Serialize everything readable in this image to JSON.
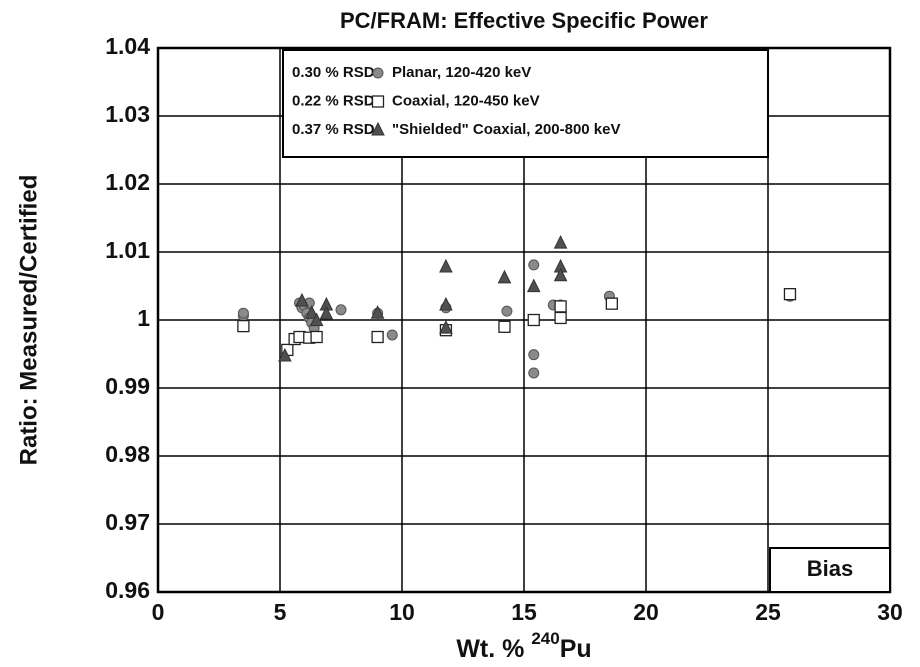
{
  "chart_data": {
    "type": "scatter",
    "title": "PC/FRAM:  Effective Specific Power",
    "xlabel": {
      "prefix": "Wt. %",
      "superscript": "240",
      "suffix": "Pu"
    },
    "ylabel": "Ratio:  Measured/Certified",
    "annotation": "Bias",
    "xlim": [
      0,
      30
    ],
    "xticks": [
      0,
      5,
      10,
      15,
      20,
      25,
      30
    ],
    "ylim": [
      0.96,
      1.04
    ],
    "yticks": [
      0.96,
      0.97,
      0.98,
      0.99,
      1,
      1.01,
      1.02,
      1.03,
      1.04
    ],
    "grid": true,
    "legend": "top",
    "series": [
      {
        "name": "Planar, 120-420 keV",
        "rsd_label": "0.30 % RSD",
        "marker": "circle",
        "color": "#8a8a8a",
        "x": [
          3.5,
          3.5,
          5.8,
          5.9,
          6.0,
          6.1,
          6.2,
          6.2,
          6.3,
          6.4,
          7.5,
          9.0,
          9.6,
          11.8,
          14.3,
          15.4,
          15.4,
          15.4,
          16.2,
          16.5,
          18.5,
          25.9
        ],
        "values": [
          1.0006,
          1.001,
          1.0025,
          1.0018,
          1.0021,
          1.001,
          1.0025,
          1.0003,
          0.9996,
          0.9988,
          1.0015,
          1.001,
          0.9978,
          1.0018,
          1.0013,
          1.0081,
          0.9949,
          0.9922,
          1.0022,
          1.0022,
          1.0035,
          1.0035
        ]
      },
      {
        "name": "Coaxial, 120-450 keV",
        "rsd_label": "0.22 % RSD",
        "marker": "square",
        "color": "#ffffff",
        "x": [
          3.5,
          5.3,
          5.6,
          5.8,
          6.2,
          6.5,
          9.0,
          11.8,
          14.2,
          15.4,
          16.5,
          16.5,
          18.6,
          25.9
        ],
        "values": [
          0.9991,
          0.9956,
          0.9972,
          0.9975,
          0.9974,
          0.9975,
          0.9975,
          0.9985,
          0.999,
          1.0,
          1.002,
          1.0003,
          1.0024,
          1.0038
        ]
      },
      {
        "name": "\"Shielded\" Coaxial, 200-800 keV",
        "rsd_label": "0.37 % RSD",
        "marker": "triangle",
        "color": "#505050",
        "x": [
          5.2,
          5.9,
          6.3,
          6.5,
          6.9,
          6.9,
          9.0,
          11.8,
          11.8,
          11.8,
          14.2,
          15.4,
          16.5,
          16.5,
          16.5
        ],
        "values": [
          0.9947,
          1.0028,
          1.001,
          0.9999,
          1.0022,
          1.0009,
          1.001,
          1.0078,
          1.0022,
          0.9988,
          1.0062,
          1.0049,
          1.0113,
          1.0078,
          1.0065
        ]
      }
    ]
  }
}
